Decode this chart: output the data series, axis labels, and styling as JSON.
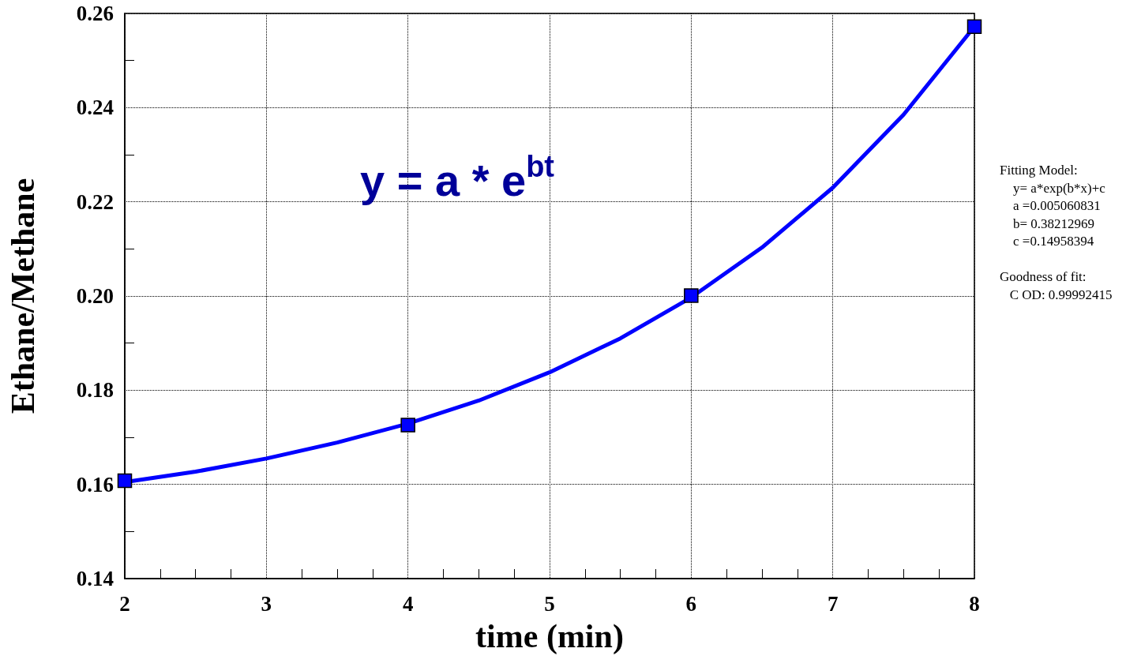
{
  "chart_data": {
    "type": "scatter",
    "xlabel": "time (min)",
    "ylabel": "Ethane/Methane",
    "xlim": [
      2,
      8
    ],
    "ylim": [
      0.14,
      0.26
    ],
    "xticks": [
      2,
      {
        "value": 2.25,
        "label": null
      },
      {
        "value": 2.5,
        "label": null
      },
      {
        "value": 2.75,
        "label": null
      },
      3,
      {
        "value": 3.25,
        "label": null
      },
      {
        "value": 3.5,
        "label": null
      },
      {
        "value": 3.75,
        "label": null
      },
      4,
      {
        "value": 4.25,
        "label": null
      },
      {
        "value": 4.5,
        "label": null
      },
      {
        "value": 4.75,
        "label": null
      },
      5,
      {
        "value": 5.25,
        "label": null
      },
      {
        "value": 5.5,
        "label": null
      },
      {
        "value": 5.75,
        "label": null
      },
      6,
      {
        "value": 6.25,
        "label": null
      },
      {
        "value": 6.5,
        "label": null
      },
      {
        "value": 6.75,
        "label": null
      },
      7,
      {
        "value": 7.25,
        "label": null
      },
      {
        "value": 7.5,
        "label": null
      },
      {
        "value": 7.75,
        "label": null
      },
      8
    ],
    "yticks": [
      0.14,
      {
        "value": 0.15,
        "label": null
      },
      0.16,
      {
        "value": 0.17,
        "label": null
      },
      0.18,
      {
        "value": 0.19,
        "label": null
      },
      {
        "value": 0.2,
        "label": "0.20"
      },
      {
        "value": 0.21,
        "label": null
      },
      0.22,
      {
        "value": 0.23,
        "label": null
      },
      0.24,
      {
        "value": 0.25,
        "label": null
      },
      0.26
    ],
    "grid": true,
    "marker": "square",
    "series": [
      {
        "type": "line",
        "marker": "none",
        "color": "#0000ff",
        "x": [
          2,
          2.5,
          3,
          3.5,
          4,
          4.5,
          5,
          5.5,
          6,
          6.5,
          7,
          7.5,
          8
        ],
        "values": [
          0.1605,
          0.1627,
          0.1655,
          0.1689,
          0.1729,
          0.1778,
          0.1838,
          0.191,
          0.1997,
          0.2103,
          0.223,
          0.2385,
          0.2572
        ]
      },
      {
        "color": "#0000ff",
        "x": [
          2,
          4,
          6,
          8
        ],
        "values": [
          0.1608,
          0.1726,
          0.2001,
          0.2572
        ]
      }
    ],
    "annotations": [
      "y = a * e$^{bt}$",
      "Fitting Model:",
      "    y= a*exp(b*x)+c",
      "    a =0.005060831",
      "    b= 0.38212969",
      "    c =0.14958394",
      "Goodness of fit:",
      "   C OD: 0.99992415"
    ]
  }
}
